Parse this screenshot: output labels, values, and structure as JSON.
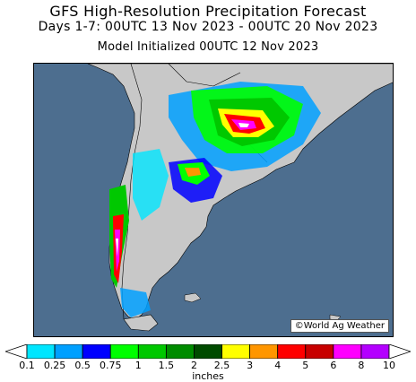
{
  "title": "GFS High-Resolution Precipitation Forecast",
  "subtitle": "Days 1-7: 00UTC 13 Nov 2023 - 00UTC 20 Nov 2023",
  "init_line": "Model Initialized 00UTC 12 Nov 2023",
  "credit": "©World Ag Weather",
  "colors": {
    "ocean": "#4d6e8f",
    "land": "#c8c8c8",
    "border": "#000000"
  },
  "legend": {
    "units": "inches",
    "ticks": [
      "0.1",
      "0.25",
      "0.5",
      "0.75",
      "1",
      "1.5",
      "2",
      "2.5",
      "3",
      "4",
      "5",
      "6",
      "8",
      "10"
    ],
    "bins": [
      {
        "color": "#00e6ff"
      },
      {
        "color": "#00a0ff"
      },
      {
        "color": "#0000ff"
      },
      {
        "color": "#00ff00"
      },
      {
        "color": "#00c800"
      },
      {
        "color": "#008c00"
      },
      {
        "color": "#004b00"
      },
      {
        "color": "#ffff00"
      },
      {
        "color": "#ff9600"
      },
      {
        "color": "#ff0000"
      },
      {
        "color": "#c80000"
      },
      {
        "color": "#ff00ff"
      },
      {
        "color": "#b400ff"
      }
    ]
  }
}
